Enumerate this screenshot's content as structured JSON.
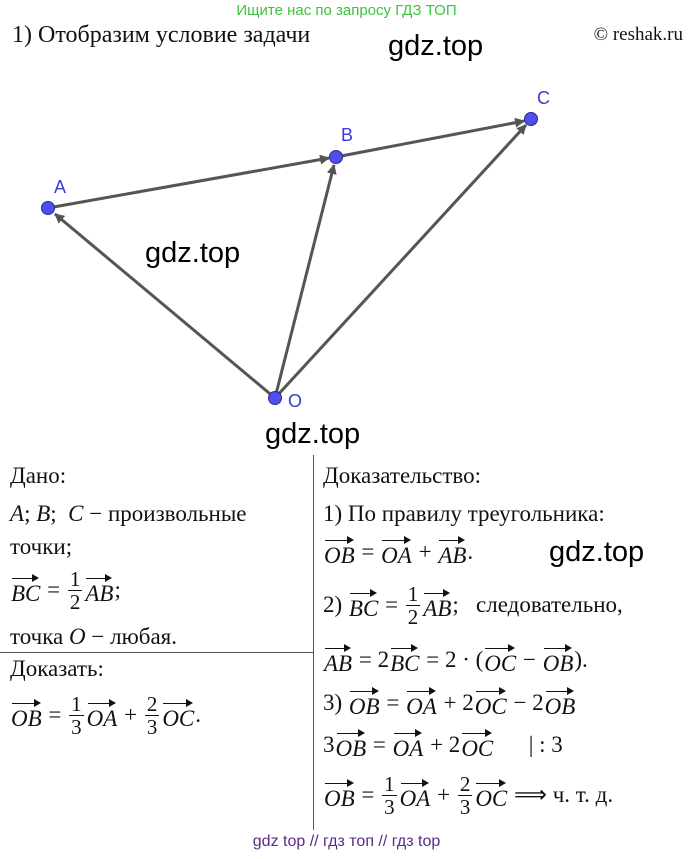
{
  "banner": "Ищите нас по запросу ГДЗ ТОП",
  "title": "1) Отобразим условие задачи",
  "copyright": "© reshak.ru",
  "watermark": "gdz.top",
  "footer": "gdz top  //  гдз топ  //  гдз top",
  "diagram": {
    "points": {
      "A": "A",
      "B": "B",
      "C": "C",
      "O": "O"
    },
    "colors": {
      "point": "#4f4ff0",
      "arrow": "#555555",
      "label": "#3a3ad8"
    }
  },
  "given": {
    "heading": "Дано:",
    "lines": [
      [
        {
          "t": "it",
          "v": "A"
        },
        {
          "t": "text",
          "v": "; "
        },
        {
          "t": "it",
          "v": "B"
        },
        {
          "t": "text",
          "v": ";  "
        },
        {
          "t": "it",
          "v": "C"
        },
        {
          "t": "text",
          "v": " − произвольные"
        }
      ],
      [
        {
          "t": "text",
          "v": "точки;"
        }
      ],
      [
        {
          "t": "vec",
          "v": "BC"
        },
        {
          "t": "text",
          "v": " = "
        },
        {
          "t": "frac",
          "n": "1",
          "d": "2"
        },
        {
          "t": "vec",
          "v": "AB"
        },
        {
          "t": "text",
          "v": ";"
        }
      ],
      [
        {
          "t": "text",
          "v": "точка "
        },
        {
          "t": "it",
          "v": "O"
        },
        {
          "t": "text",
          "v": " − любая."
        }
      ]
    ]
  },
  "prove": {
    "heading": "Доказать:",
    "lines": [
      [
        {
          "t": "vec",
          "v": "OB"
        },
        {
          "t": "text",
          "v": " = "
        },
        {
          "t": "frac",
          "n": "1",
          "d": "3"
        },
        {
          "t": "vec",
          "v": "OA"
        },
        {
          "t": "text",
          "v": " + "
        },
        {
          "t": "frac",
          "n": "2",
          "d": "3"
        },
        {
          "t": "vec",
          "v": "OC"
        },
        {
          "t": "text",
          "v": "."
        }
      ]
    ]
  },
  "proof": {
    "heading": "Доказательство:",
    "lines": [
      [
        {
          "t": "text",
          "v": "1) По правилу треугольника:"
        }
      ],
      [
        {
          "t": "vec",
          "v": "OB"
        },
        {
          "t": "text",
          "v": " = "
        },
        {
          "t": "vec",
          "v": "OA"
        },
        {
          "t": "text",
          "v": " + "
        },
        {
          "t": "vec",
          "v": "AB"
        },
        {
          "t": "text",
          "v": "."
        }
      ],
      [
        {
          "t": "text",
          "v": "2) "
        },
        {
          "t": "vec",
          "v": "BC"
        },
        {
          "t": "text",
          "v": " = "
        },
        {
          "t": "frac",
          "n": "1",
          "d": "2"
        },
        {
          "t": "vec",
          "v": "AB"
        },
        {
          "t": "text",
          "v": ";   следовательно,"
        }
      ],
      [
        {
          "t": "vec",
          "v": "AB"
        },
        {
          "t": "text",
          "v": " = 2"
        },
        {
          "t": "vec",
          "v": "BC"
        },
        {
          "t": "text",
          "v": " = 2 · ("
        },
        {
          "t": "vec",
          "v": "OC"
        },
        {
          "t": "text",
          "v": " − "
        },
        {
          "t": "vec",
          "v": "OB"
        },
        {
          "t": "text",
          "v": ")."
        }
      ],
      [
        {
          "t": "text",
          "v": "3) "
        },
        {
          "t": "vec",
          "v": "OB"
        },
        {
          "t": "text",
          "v": " = "
        },
        {
          "t": "vec",
          "v": "OA"
        },
        {
          "t": "text",
          "v": " + 2"
        },
        {
          "t": "vec",
          "v": "OC"
        },
        {
          "t": "text",
          "v": " − 2"
        },
        {
          "t": "vec",
          "v": "OB"
        }
      ],
      [
        {
          "t": "text",
          "v": "3"
        },
        {
          "t": "vec",
          "v": "OB"
        },
        {
          "t": "text",
          "v": " = "
        },
        {
          "t": "vec",
          "v": "OA"
        },
        {
          "t": "text",
          "v": " + 2"
        },
        {
          "t": "vec",
          "v": "OC"
        },
        {
          "t": "text",
          "v": "      | : 3"
        }
      ],
      [
        {
          "t": "vec",
          "v": "OB"
        },
        {
          "t": "text",
          "v": " = "
        },
        {
          "t": "frac",
          "n": "1",
          "d": "3"
        },
        {
          "t": "vec",
          "v": "OA"
        },
        {
          "t": "text",
          "v": " + "
        },
        {
          "t": "frac",
          "n": "2",
          "d": "3"
        },
        {
          "t": "vec",
          "v": "OC"
        },
        {
          "t": "text",
          "v": " ⟹ ч. т. д."
        }
      ]
    ]
  }
}
